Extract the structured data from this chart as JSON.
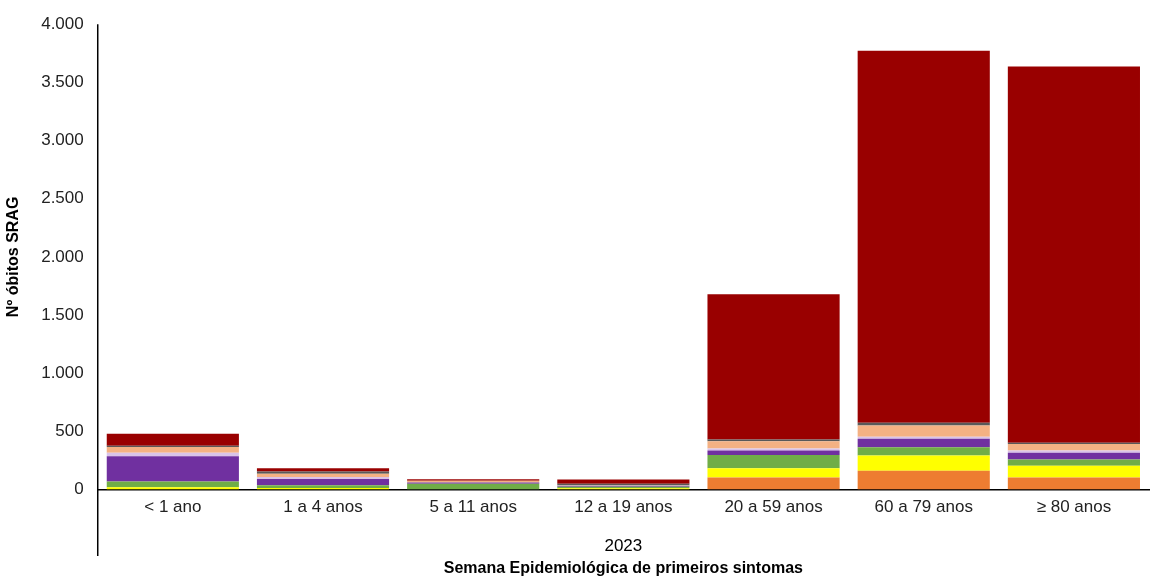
{
  "chart_data": {
    "type": "bar",
    "stacked": true,
    "ylabel": "Nº óbitos SRAG",
    "xlabel": "Semana Epidemiológica de primeiros sintomas",
    "annotations": [
      "2023"
    ],
    "categories": [
      "< 1 ano",
      "1 a 4 anos",
      "5 a 11 anos",
      "12 a 19 anos",
      "20 a 59 anos",
      "60 a 79 anos",
      "≥ 80 anos"
    ],
    "ylim": [
      0,
      4000
    ],
    "yticks": [
      0,
      {
        "value": 500,
        "label": "500"
      },
      {
        "value": 1000,
        "label": "1.000"
      },
      {
        "value": 1500,
        "label": "1.500"
      },
      {
        "value": 2000,
        "label": "2.000"
      },
      {
        "value": 2500,
        "label": "2.500"
      },
      {
        "value": 3000,
        "label": "3.000"
      },
      {
        "value": 3500,
        "label": "3.500"
      },
      {
        "value": 4000,
        "label": "4.000"
      }
    ],
    "grid": false,
    "legend": false,
    "series": [
      {
        "color": "#ed7d31",
        "values": [
          null,
          null,
          null,
          null,
          105,
          161,
          105
        ]
      },
      {
        "color": "#ffff00",
        "values": [
          20,
          14,
          0,
          11,
          79,
          133,
          99
        ]
      },
      {
        "color": "#70ad47",
        "values": [
          50,
          23,
          51,
          14,
          113,
          71,
          54
        ]
      },
      {
        "color": "#7030a0",
        "values": [
          217,
          54,
          11,
          5,
          40,
          73,
          59
        ]
      },
      {
        "color": "#d9c3e9",
        "values": [
          30,
          17,
          null,
          3,
          17,
          17,
          20
        ]
      },
      {
        "color": "#f4b183",
        "values": [
          50,
          28,
          14,
          3,
          62,
          96,
          54
        ]
      },
      {
        "color": "#595959",
        "values": [
          10,
          20,
          0,
          14,
          14,
          23,
          11
        ]
      },
      {
        "color": "#990000",
        "values": [
          102,
          28,
          14,
          37,
          1248,
          3197,
          3234
        ]
      }
    ]
  }
}
